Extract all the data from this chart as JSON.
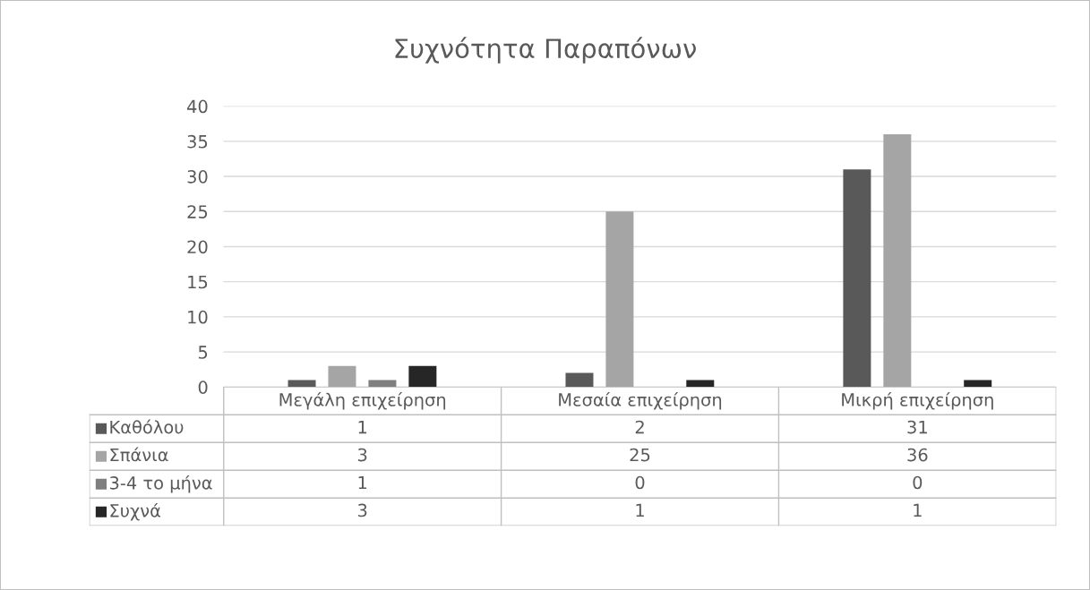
{
  "chart_data": {
    "type": "bar",
    "title": "Συχνότητα Παραπόνων",
    "categories": [
      "Μεγάλη επιχείρηση",
      "Μεσαία επιχείρηση",
      "Μικρή επιχείρηση"
    ],
    "series": [
      {
        "name": "Καθόλου",
        "color": "#595959",
        "values": [
          1,
          2,
          31
        ]
      },
      {
        "name": "Σπάνια",
        "color": "#a5a5a5",
        "values": [
          3,
          25,
          36
        ]
      },
      {
        "name": "3-4 το μήνα",
        "color": "#7f7f7f",
        "values": [
          1,
          0,
          0
        ]
      },
      {
        "name": "Συχνά",
        "color": "#262626",
        "values": [
          3,
          1,
          1
        ]
      }
    ],
    "ylim": [
      0,
      40
    ],
    "yticks": [
      0,
      5,
      10,
      15,
      20,
      25,
      30,
      35,
      40
    ],
    "grid": "y",
    "legend": "bottom",
    "data_labels": true
  }
}
